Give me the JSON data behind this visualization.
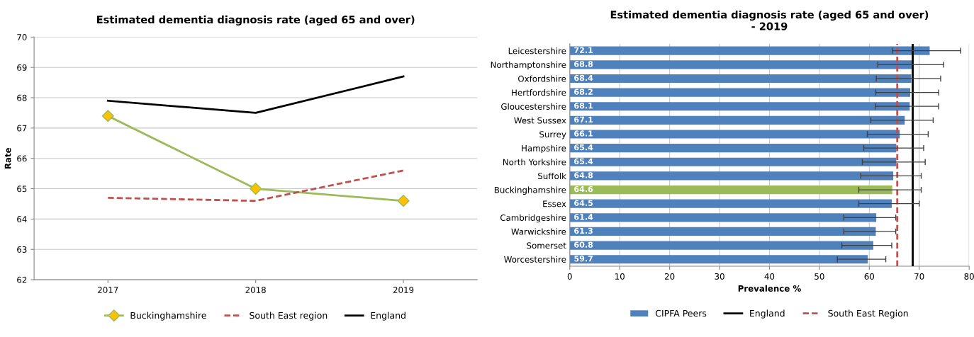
{
  "chart_data": [
    {
      "type": "line",
      "title": "Estimated dementia diagnosis rate (aged 65 and over)",
      "ylabel": "Rate",
      "categories": [
        "2017",
        "2018",
        "2019"
      ],
      "series": [
        {
          "name": "Buckinghamshire",
          "color": "#9bbb59",
          "values": [
            67.4,
            65.0,
            64.6
          ],
          "marker": "diamond"
        },
        {
          "name": "South East region",
          "color": "#c0504d",
          "values": [
            64.7,
            64.6,
            65.6
          ],
          "line_style": "dashed"
        },
        {
          "name": "England",
          "color": "#000000",
          "values": [
            67.9,
            67.5,
            68.7
          ]
        }
      ],
      "ylim": [
        62,
        70
      ],
      "yticks": [
        62,
        63,
        64,
        65,
        66,
        67,
        68,
        69,
        70
      ],
      "grid": "y",
      "legend": "bottom"
    },
    {
      "type": "bar",
      "orientation": "horizontal",
      "title": "Estimated dementia diagnosis rate (aged 65 and over)\n- 2019",
      "xlabel": "Prevalence %",
      "categories": [
        "Leicestershire",
        "Northamptonshire",
        "Oxfordshire",
        "Hertfordshire",
        "Gloucestershire",
        "West Sussex",
        "Surrey",
        "Hampshire",
        "North Yorkshire",
        "Suffolk",
        "Buckinghamshire",
        "Essex",
        "Cambridgeshire",
        "Warwickshire",
        "Somerset",
        "Worcestershire"
      ],
      "series": [
        {
          "name": "CIPFA Peers",
          "color": "#4f81bd",
          "colors": [
            "#4f81bd",
            "#4f81bd",
            "#4f81bd",
            "#4f81bd",
            "#4f81bd",
            "#4f81bd",
            "#4f81bd",
            "#4f81bd",
            "#4f81bd",
            "#4f81bd",
            "#9bbb59",
            "#4f81bd",
            "#4f81bd",
            "#4f81bd",
            "#4f81bd",
            "#4f81bd"
          ],
          "values": [
            72.1,
            68.8,
            68.4,
            68.2,
            68.1,
            67.1,
            66.1,
            65.4,
            65.4,
            64.8,
            64.6,
            64.5,
            61.4,
            61.3,
            60.8,
            59.7
          ],
          "errors": [
            [
              64.6,
              78.3
            ],
            [
              61.7,
              74.9
            ],
            [
              61.4,
              74.3
            ],
            [
              61.3,
              73.9
            ],
            [
              61.2,
              73.9
            ],
            [
              60.3,
              72.8
            ],
            [
              59.6,
              71.8
            ],
            [
              58.9,
              70.9
            ],
            [
              58.6,
              71.2
            ],
            [
              58.3,
              70.4
            ],
            [
              57.9,
              70.4
            ],
            [
              57.9,
              70.0
            ],
            [
              54.9,
              65.3
            ],
            [
              54.9,
              65.3
            ],
            [
              54.5,
              64.5
            ],
            [
              53.6,
              63.3
            ]
          ]
        }
      ],
      "ref_lines": [
        {
          "axis": "x",
          "value": 68.7,
          "label": "England",
          "color": "#000000",
          "line_style": "solid"
        },
        {
          "axis": "x",
          "value": 65.6,
          "label": "South East Region",
          "color": "#c0504d",
          "line_style": "dashed"
        }
      ],
      "xlim": [
        0,
        80
      ],
      "xticks": [
        0,
        10,
        20,
        30,
        40,
        50,
        60,
        70,
        80
      ],
      "grid": "x",
      "data_labels": true,
      "legend": "bottom"
    }
  ]
}
